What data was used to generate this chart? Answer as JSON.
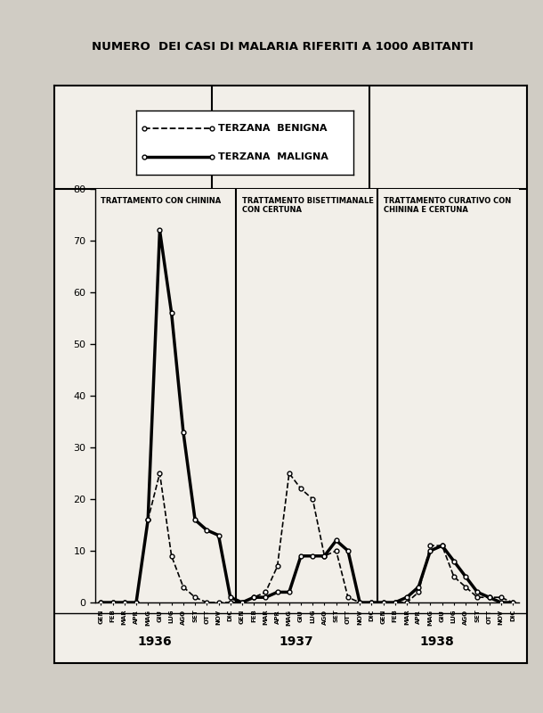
{
  "title": "NUMERO  DEI CASI DI MALARIA RIFERITI A 1000 ABITANTI",
  "bg_color": "#e8e5df",
  "plot_bg": "#f0ede8",
  "border_color": "#222222",
  "section_labels": [
    "TRATTAMENTO CON CHININA",
    "TRATTAMENTO BISETTIMANALE\nCON CERTUNA",
    "TRATTAMENTO CURATIVO CON\nCHININA E CERTUNA"
  ],
  "year_labels": [
    "1936",
    "1937",
    "1938"
  ],
  "months": [
    "GEN",
    "FEB",
    "MAR",
    "APR",
    "MAG",
    "GIU",
    "LUG",
    "AGO",
    "SET",
    "OTT",
    "NOV",
    "DIC"
  ],
  "ylim": [
    0,
    80
  ],
  "yticks": [
    0,
    10,
    20,
    30,
    40,
    50,
    60,
    70,
    80
  ],
  "benigna_1936": [
    0,
    0,
    0,
    0,
    16,
    25,
    9,
    3,
    1,
    0,
    0,
    0
  ],
  "maligna_1936": [
    0,
    0,
    0,
    0,
    16,
    72,
    56,
    33,
    16,
    14,
    13,
    1
  ],
  "benigna_1937": [
    0,
    1,
    2,
    7,
    25,
    22,
    20,
    9,
    10,
    1,
    0,
    0
  ],
  "maligna_1937": [
    0,
    1,
    1,
    2,
    2,
    9,
    9,
    9,
    12,
    10,
    0,
    0
  ],
  "benigna_1938": [
    0,
    0,
    0,
    2,
    11,
    11,
    5,
    3,
    1,
    1,
    1,
    0
  ],
  "maligna_1938": [
    0,
    0,
    1,
    3,
    10,
    11,
    8,
    5,
    2,
    1,
    0,
    0
  ],
  "legend_benigna": "TERZANA  BENIGNA",
  "legend_maligna": "TERZANA  MALIGNA"
}
